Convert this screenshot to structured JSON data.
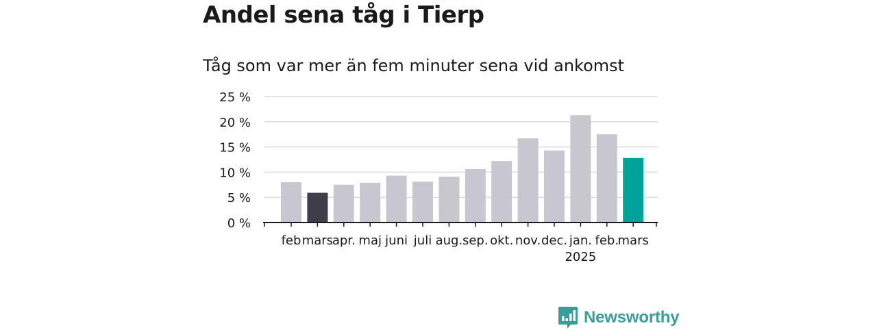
{
  "header": {
    "title": "Andel sena tåg i Tierp",
    "subtitle": "Tåg som var mer än fem minuter sena vid ankomst"
  },
  "brand": {
    "name": "Newsworthy",
    "color": "#3a9e98",
    "icon": "newsworthy-logo-icon"
  },
  "chart_data": {
    "type": "bar",
    "title": "Andel sena tåg i Tierp",
    "subtitle": "Tåg som var mer än fem minuter sena vid ankomst",
    "xlabel": "",
    "ylabel": "",
    "categories": [
      "feb",
      "mars",
      "apr.",
      "maj",
      "juni",
      "juli",
      "aug.",
      "sep.",
      "okt.",
      "nov.",
      "dec.",
      "jan.",
      "feb.",
      "mars"
    ],
    "year_label": {
      "index": 11,
      "text": "2025"
    },
    "values": [
      8.0,
      5.9,
      7.5,
      7.9,
      9.3,
      8.1,
      9.1,
      10.6,
      12.2,
      16.7,
      14.3,
      21.3,
      17.5,
      12.8
    ],
    "highlight": {
      "1": "#3f3d4a",
      "13": "#00a398"
    },
    "bar_color": "#c8c7d0",
    "y_ticks": [
      0,
      5,
      10,
      15,
      20,
      25
    ],
    "y_tick_suffix": " %",
    "ylim": [
      0,
      25
    ],
    "grid": true,
    "legend": "none"
  }
}
